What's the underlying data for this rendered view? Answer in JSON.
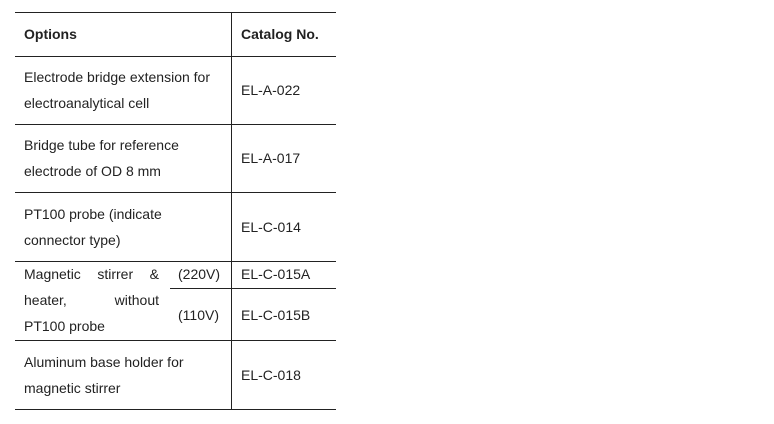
{
  "headers": {
    "options": "Options",
    "catalog": "Catalog No."
  },
  "rows": [
    {
      "option": "Electrode bridge extension for",
      "option2": "electroanalytical  cell",
      "catalog": "EL-A-022"
    },
    {
      "option": "Bridge tube for reference",
      "option2": "electrode of OD 8 mm",
      "catalog": "EL-A-017"
    },
    {
      "option": "PT100 probe (indicate",
      "option2": "connector type)",
      "catalog": "EL-C-014"
    },
    {
      "option": "Magnetic stirrer &",
      "option2": "heater, without",
      "option3": "PT100 probe",
      "variants": [
        {
          "voltage": "(220V)",
          "catalog": "EL-C-015A"
        },
        {
          "voltage": "(110V)",
          "catalog": "EL-C-015B"
        }
      ]
    },
    {
      "option": "Aluminum base holder for",
      "option2": "magnetic stirrer",
      "catalog": "EL-C-018"
    }
  ]
}
